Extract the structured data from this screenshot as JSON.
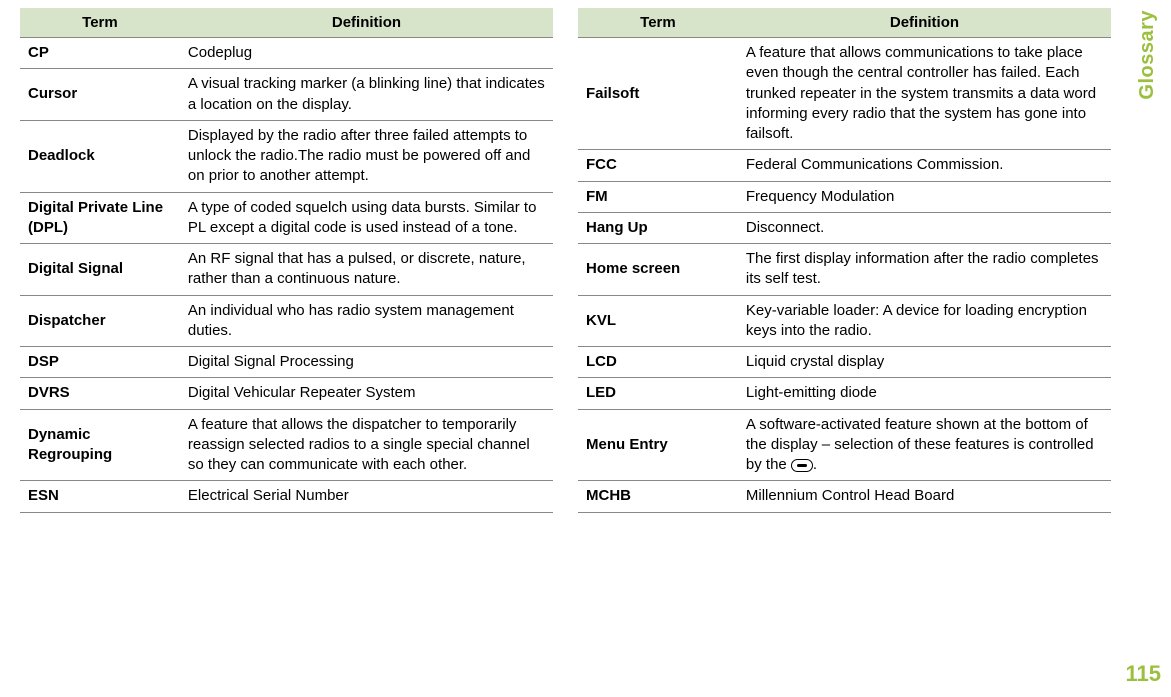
{
  "header_bg": "#d7e4c9",
  "sidebar_color": "#9bbf3e",
  "sidebar_label": "Glossary",
  "page_number": "115",
  "columns": {
    "term": "Term",
    "definition": "Definition"
  },
  "left": [
    {
      "term": "CP",
      "def": "Codeplug"
    },
    {
      "term": "Cursor",
      "def": "A visual tracking marker (a blinking line) that indicates a location on the display."
    },
    {
      "term": "Deadlock",
      "def": "Displayed by the radio after three failed attempts to unlock the radio.The radio must be powered off and on prior to another attempt."
    },
    {
      "term": "Digital Private Line (DPL)",
      "def": "A type of coded squelch using data bursts. Similar to PL except a digital code is used instead of a tone."
    },
    {
      "term": "Digital Signal",
      "def": "An RF signal that has a pulsed, or discrete, nature, rather than a continuous nature."
    },
    {
      "term": "Dispatcher",
      "def": "An individual who has radio system management duties."
    },
    {
      "term": "DSP",
      "def": "Digital Signal Processing"
    },
    {
      "term": "DVRS",
      "def": "Digital Vehicular Repeater System"
    },
    {
      "term": "Dynamic Regrouping",
      "def": "A feature that allows the dispatcher to temporarily reassign selected radios to a single special channel so they can communicate with each other."
    },
    {
      "term": "ESN",
      "def": "Electrical Serial Number"
    }
  ],
  "right": [
    {
      "term": "Failsoft",
      "def": "A feature that allows communications to take place even though the central controller has failed. Each trunked repeater in the system transmits a data word informing every radio that the system has gone into failsoft."
    },
    {
      "term": "FCC",
      "def": "Federal Communications Commission."
    },
    {
      "term": "FM",
      "def": "Frequency Modulation"
    },
    {
      "term": "Hang Up",
      "def": "Disconnect."
    },
    {
      "term": "Home screen",
      "def": "The first display information after the radio completes its self test."
    },
    {
      "term": "KVL",
      "def": "Key-variable loader: A device for loading encryption keys into the radio."
    },
    {
      "term": "LCD",
      "def": "Liquid crystal display"
    },
    {
      "term": "LED",
      "def": "Light-emitting diode"
    },
    {
      "term": "Menu Entry",
      "def": "A software-activated feature shown at the bottom of the display – selection of these features is controlled by the {ICON}."
    },
    {
      "term": "MCHB",
      "def": "Millennium Control Head Board"
    }
  ]
}
